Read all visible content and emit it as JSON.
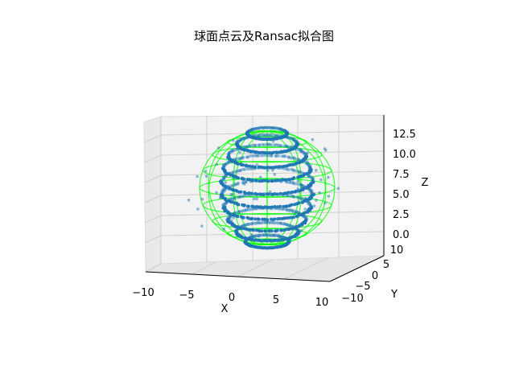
{
  "chart_data": {
    "type": "scatter3d",
    "title": "球面点云及Ransac拟合图",
    "xlabel": "X",
    "ylabel": "Y",
    "zlabel": "Z",
    "x_ticks": [
      "−10",
      "−5",
      "0",
      "5",
      "10"
    ],
    "y_ticks": [
      "−10",
      "−5",
      "0",
      "5",
      "10"
    ],
    "z_ticks": [
      "0.0",
      "2.5",
      "5.0",
      "7.5",
      "10.0",
      "12.5"
    ],
    "xlim": [
      -10,
      10
    ],
    "ylim": [
      -10,
      10
    ],
    "zlim": [
      -1.5,
      14
    ],
    "grid": true,
    "point_color": "#1f77b4",
    "wireframe_color": "#00ff00",
    "sphere_fit": {
      "center": [
        0,
        0,
        6
      ],
      "radius": 7.5
    },
    "point_rings": [
      {
        "z": 13.2,
        "radius": 4.2
      },
      {
        "z": 11.8,
        "radius": 6.4
      },
      {
        "z": 10.2,
        "radius": 8.2
      },
      {
        "z": 8.6,
        "radius": 9.2
      },
      {
        "z": 6.9,
        "radius": 9.6
      },
      {
        "z": 5.2,
        "radius": 9.6
      },
      {
        "z": 3.5,
        "radius": 9.2
      },
      {
        "z": 1.8,
        "radius": 8.2
      },
      {
        "z": 0.2,
        "radius": 6.6
      },
      {
        "z": -1.1,
        "radius": 4.6
      }
    ]
  }
}
